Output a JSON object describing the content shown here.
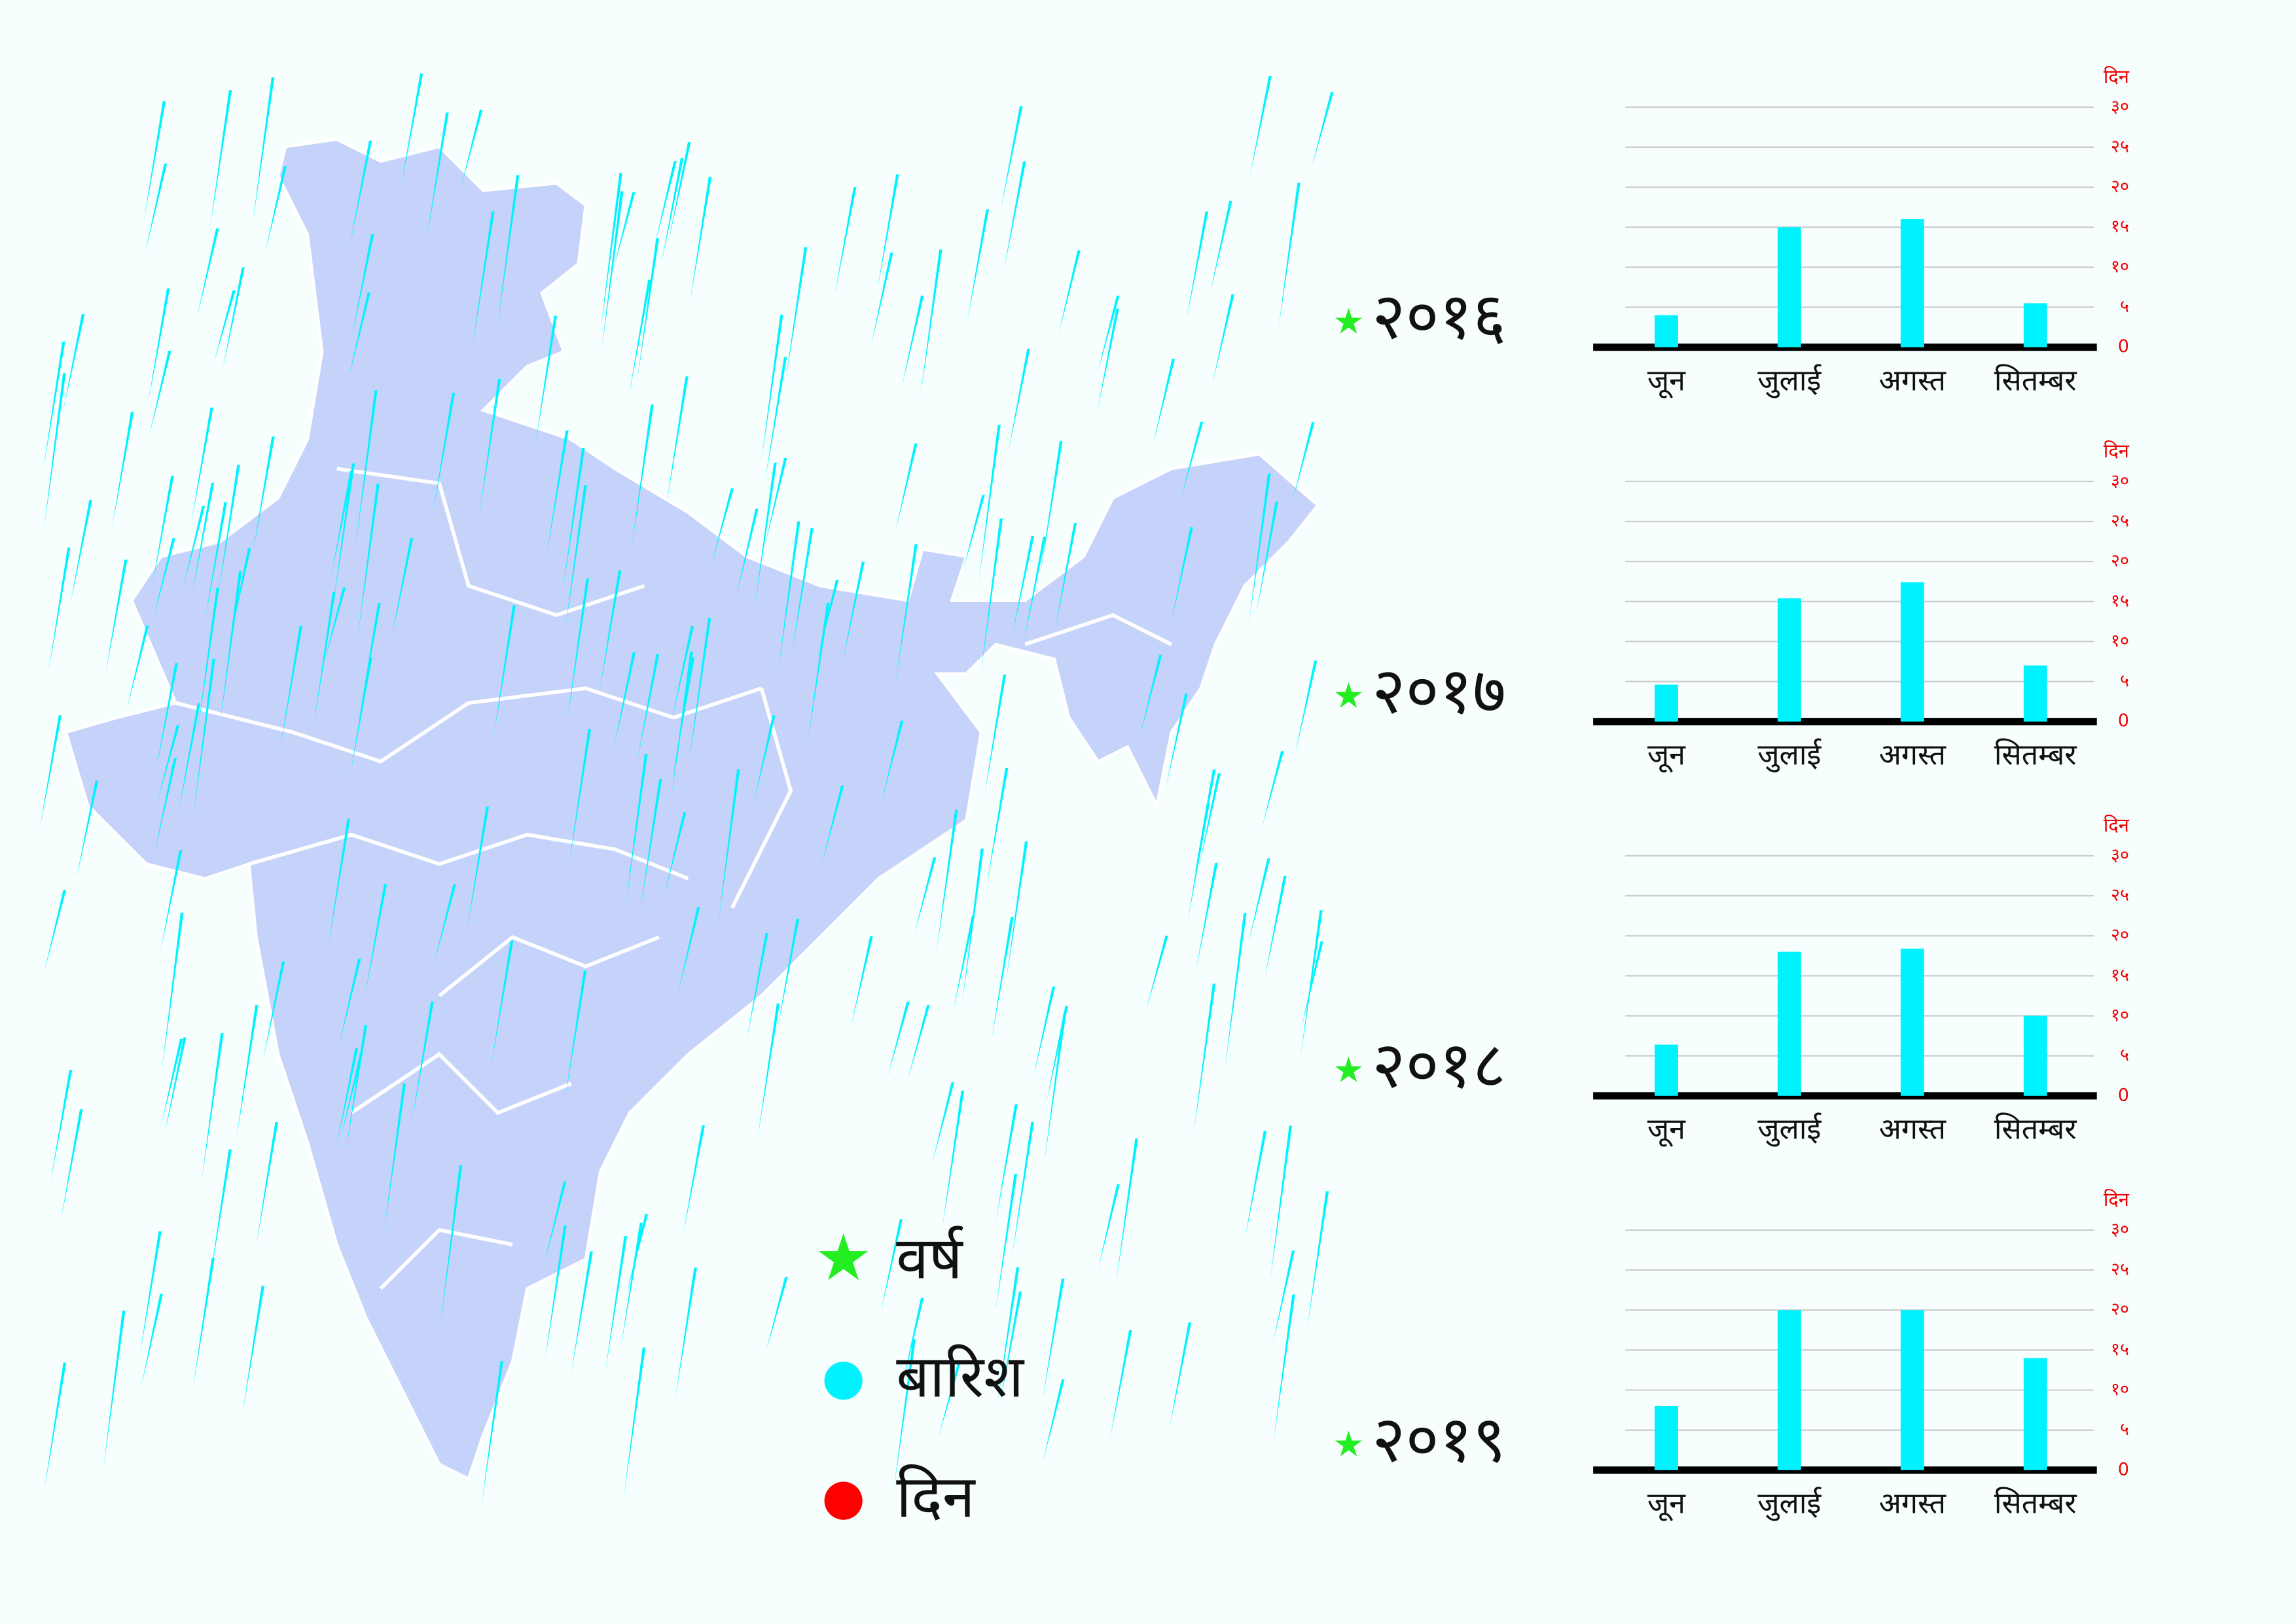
{
  "chart_data": [
    {
      "type": "bar",
      "title": "२०१६",
      "ylabel": "दिन",
      "categories": [
        "जून",
        "जुलाई",
        "अगस्त",
        "सितम्बर"
      ],
      "values": [
        4,
        15,
        16,
        5.5
      ],
      "color": "#00f2ff",
      "ylim": [
        0,
        30
      ],
      "yticks": [
        0,
        {
          "value": 5,
          "label": "५"
        },
        {
          "value": 10,
          "label": "१०"
        },
        {
          "value": 15,
          "label": "१५"
        },
        {
          "value": 20,
          "label": "२०"
        },
        {
          "value": 25,
          "label": "२५"
        },
        {
          "value": 30,
          "label": "३०"
        }
      ],
      "grid": true
    },
    {
      "type": "bar",
      "title": "२०१७",
      "ylabel": "दिन",
      "categories": [
        "जून",
        "जुलाई",
        "अगस्त",
        "सितम्बर"
      ],
      "values": [
        4.6,
        15.4,
        17.4,
        7
      ],
      "color": "#00f2ff",
      "ylim": [
        0,
        30
      ],
      "yticks": [
        0,
        {
          "value": 5,
          "label": "५"
        },
        {
          "value": 10,
          "label": "१०"
        },
        {
          "value": 15,
          "label": "१५"
        },
        {
          "value": 20,
          "label": "२०"
        },
        {
          "value": 25,
          "label": "२५"
        },
        {
          "value": 30,
          "label": "३०"
        }
      ],
      "grid": true
    },
    {
      "type": "bar",
      "title": "२०१८",
      "ylabel": "दिन",
      "categories": [
        "जून",
        "जुलाई",
        "अगस्त",
        "सितम्बर"
      ],
      "values": [
        6.4,
        18,
        18.4,
        10
      ],
      "color": "#00f2ff",
      "ylim": [
        0,
        30
      ],
      "yticks": [
        0,
        {
          "value": 5,
          "label": "५"
        },
        {
          "value": 10,
          "label": "१०"
        },
        {
          "value": 15,
          "label": "१५"
        },
        {
          "value": 20,
          "label": "२०"
        },
        {
          "value": 25,
          "label": "२५"
        },
        {
          "value": 30,
          "label": "३०"
        }
      ],
      "grid": true
    },
    {
      "type": "bar",
      "title": "२०१९",
      "ylabel": "दिन",
      "categories": [
        "जून",
        "जुलाई",
        "अगस्त",
        "सितम्बर"
      ],
      "values": [
        8,
        20,
        20,
        14
      ],
      "color": "#00f2ff",
      "ylim": [
        0,
        30
      ],
      "yticks": [
        0,
        {
          "value": 5,
          "label": "५"
        },
        {
          "value": 10,
          "label": "१०"
        },
        {
          "value": 15,
          "label": "१५"
        },
        {
          "value": 20,
          "label": "२०"
        },
        {
          "value": 25,
          "label": "२५"
        },
        {
          "value": 30,
          "label": "३०"
        }
      ],
      "grid": true
    }
  ],
  "legend": [
    {
      "label": "वर्ष",
      "color": "#22ee22"
    },
    {
      "label": "बारिश",
      "color": "#00f2ff"
    },
    {
      "label": "दिन",
      "color": "#ff0000"
    }
  ]
}
